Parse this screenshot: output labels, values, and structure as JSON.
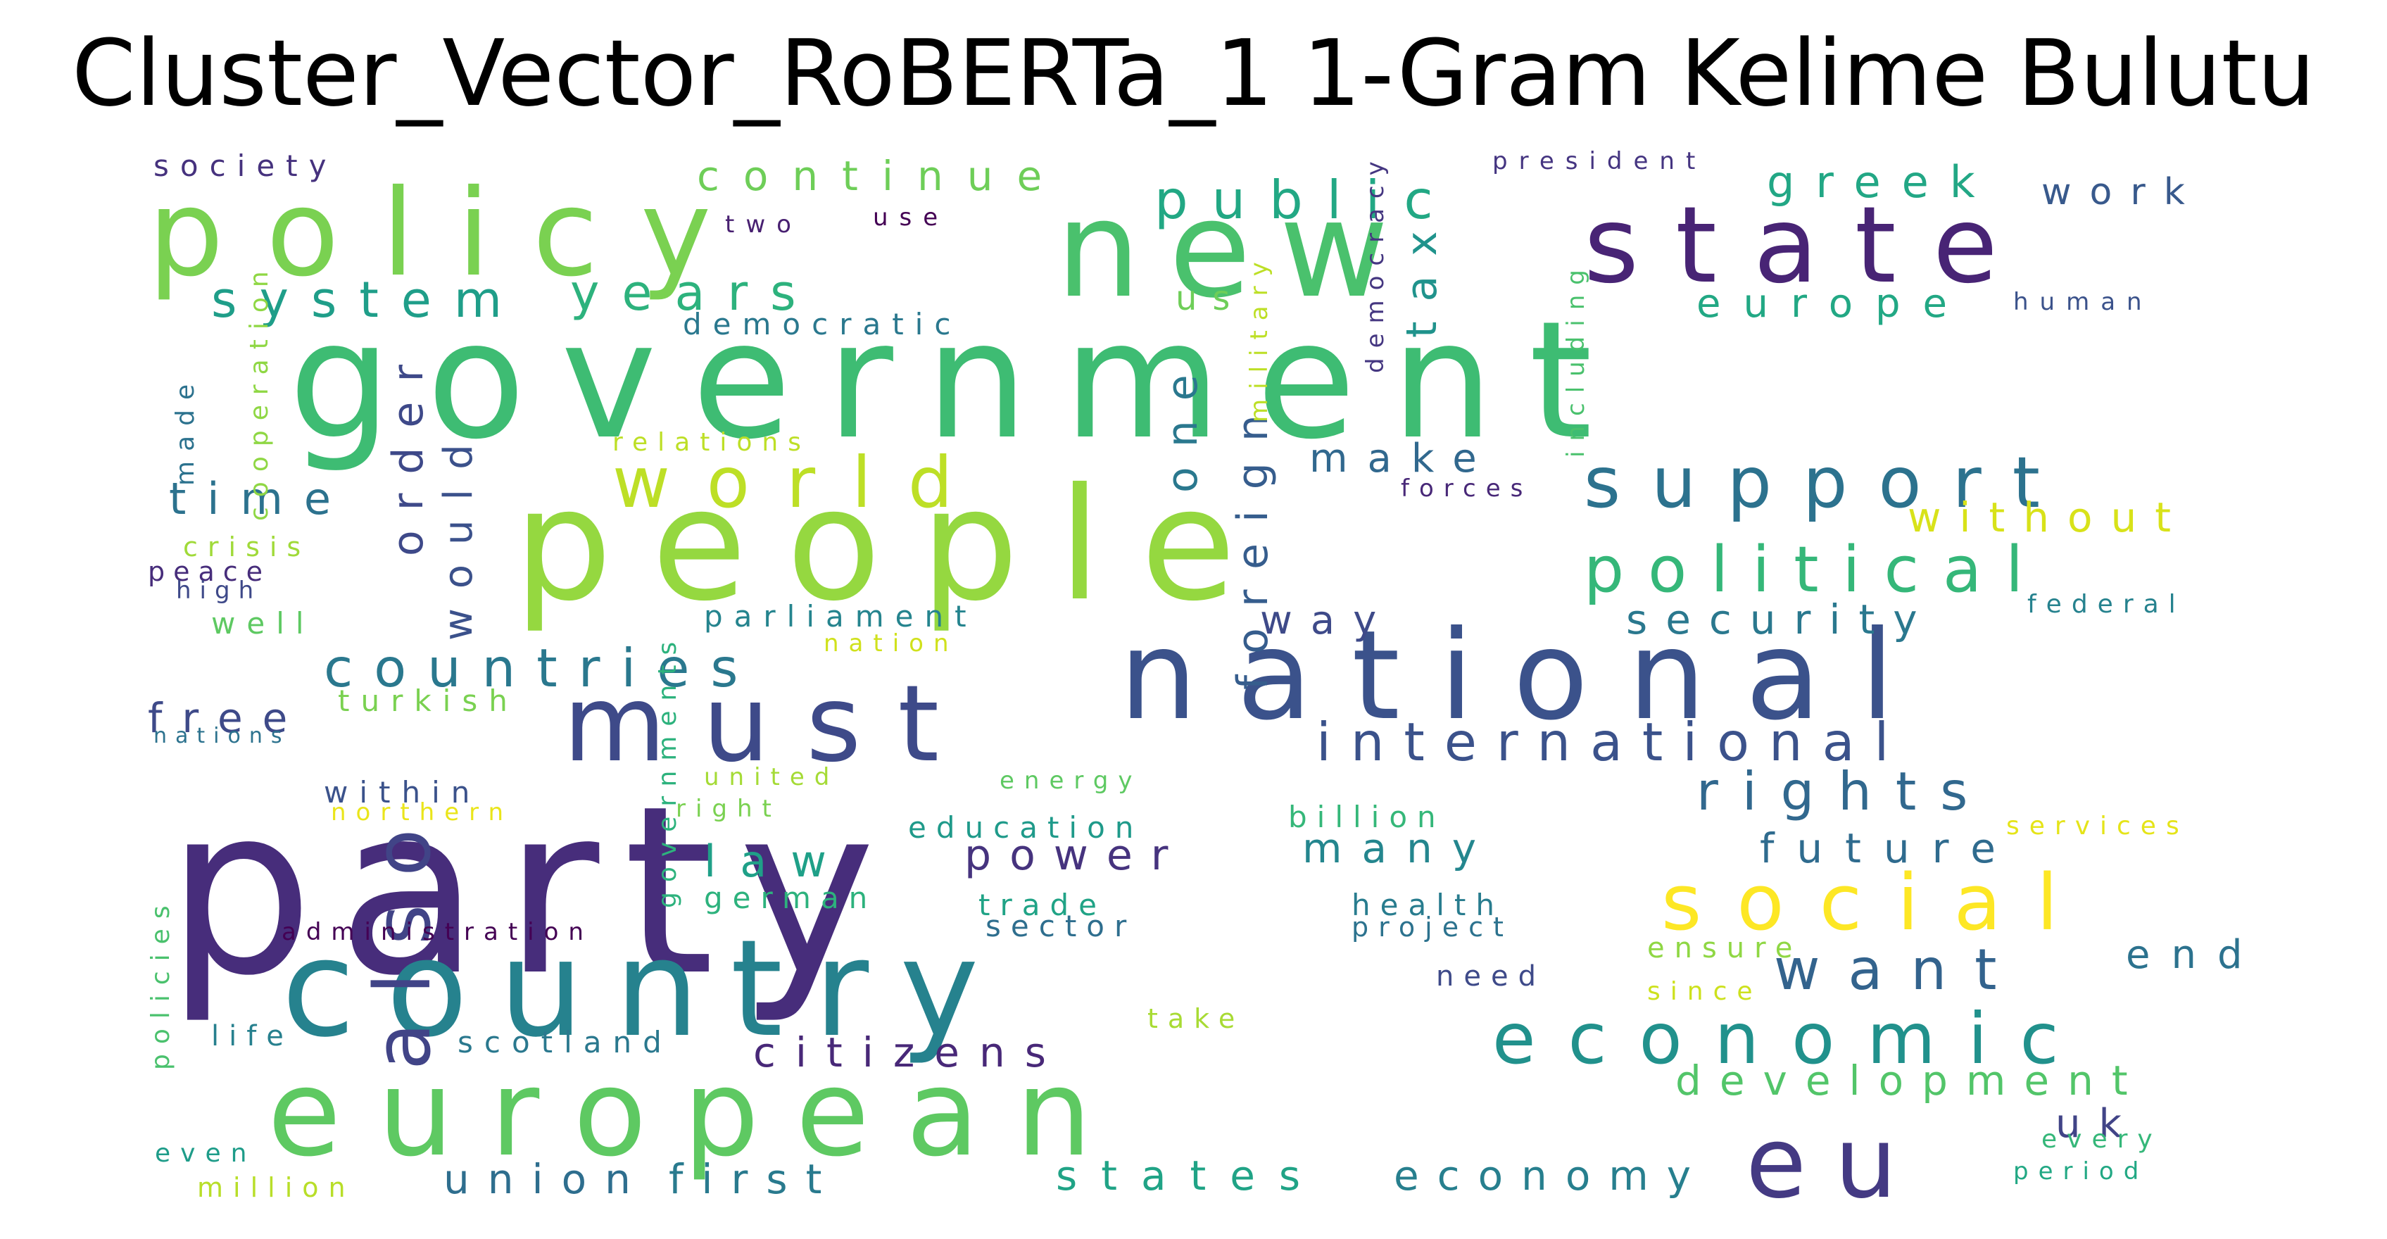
{
  "title": "Cluster_Vector_RoBERTa_1 1-Gram Kelime Bulutu",
  "words": [
    {
      "text": "party",
      "color": "#472d7b"
    },
    {
      "text": "government",
      "color": "#3ebc73"
    },
    {
      "text": "people",
      "color": "#95d840"
    },
    {
      "text": "country",
      "color": "#26828e"
    },
    {
      "text": "european",
      "color": "#5ec962"
    },
    {
      "text": "national",
      "color": "#3b528b"
    },
    {
      "text": "policy",
      "color": "#7ad151"
    },
    {
      "text": "new",
      "color": "#4ac16d"
    },
    {
      "text": "state",
      "color": "#482475"
    },
    {
      "text": "must",
      "color": "#3e4a89"
    },
    {
      "text": "also",
      "color": "#414487"
    },
    {
      "text": "eu",
      "color": "#443a83"
    },
    {
      "text": "social",
      "color": "#fde725"
    },
    {
      "text": "economic",
      "color": "#21918c"
    },
    {
      "text": "world",
      "color": "#bddf26"
    },
    {
      "text": "support",
      "color": "#2c728e"
    },
    {
      "text": "political",
      "color": "#35b779"
    },
    {
      "text": "international",
      "color": "#3b528b"
    },
    {
      "text": "countries",
      "color": "#2a788e"
    },
    {
      "text": "rights",
      "color": "#31688e"
    },
    {
      "text": "system",
      "color": "#1f9e89"
    },
    {
      "text": "years",
      "color": "#2db27d"
    },
    {
      "text": "public",
      "color": "#22a884"
    },
    {
      "text": "continue",
      "color": "#6ece58"
    },
    {
      "text": "security",
      "color": "#2a788e"
    },
    {
      "text": "development",
      "color": "#52c569"
    },
    {
      "text": "future",
      "color": "#2f6b8e"
    },
    {
      "text": "want",
      "color": "#33638d"
    },
    {
      "text": "union",
      "color": "#2e6e8e"
    },
    {
      "text": "first",
      "color": "#297a8e"
    },
    {
      "text": "states",
      "color": "#20a386"
    },
    {
      "text": "economy",
      "color": "#277f8e"
    },
    {
      "text": "citizens",
      "color": "#482878"
    },
    {
      "text": "power",
      "color": "#46337e"
    },
    {
      "text": "law",
      "color": "#1fa088"
    },
    {
      "text": "many",
      "color": "#24868e"
    },
    {
      "text": "foreign",
      "color": "#365d8d"
    },
    {
      "text": "one",
      "color": "#2a788e"
    },
    {
      "text": "order",
      "color": "#3e4989"
    },
    {
      "text": "would",
      "color": "#3b518b"
    },
    {
      "text": "time",
      "color": "#2c728e"
    },
    {
      "text": "free",
      "color": "#3e4a89"
    },
    {
      "text": "tax",
      "color": "#20938c"
    },
    {
      "text": "make",
      "color": "#31688e"
    },
    {
      "text": "greek",
      "color": "#22a785"
    },
    {
      "text": "work",
      "color": "#38598c"
    },
    {
      "text": "europe",
      "color": "#22a884"
    },
    {
      "text": "without",
      "color": "#d8e219"
    },
    {
      "text": "way",
      "color": "#3e4a89"
    },
    {
      "text": "end",
      "color": "#2c728e"
    },
    {
      "text": "uk",
      "color": "#414487"
    },
    {
      "text": "us",
      "color": "#6ece58"
    },
    {
      "text": "democratic",
      "color": "#2a788e"
    },
    {
      "text": "parliament",
      "color": "#25848e"
    },
    {
      "text": "within",
      "color": "#3b528b"
    },
    {
      "text": "turkish",
      "color": "#7ad151"
    },
    {
      "text": "well",
      "color": "#5ec962"
    },
    {
      "text": "peace",
      "color": "#472d7b"
    },
    {
      "text": "crisis",
      "color": "#a0da39"
    },
    {
      "text": "high",
      "color": "#3e4989"
    },
    {
      "text": "nations",
      "color": "#2c728e"
    },
    {
      "text": "society",
      "color": "#46327e"
    },
    {
      "text": "two",
      "color": "#482071"
    },
    {
      "text": "use",
      "color": "#440154"
    },
    {
      "text": "president",
      "color": "#453581"
    },
    {
      "text": "human",
      "color": "#3b528b"
    },
    {
      "text": "federal",
      "color": "#26828e"
    },
    {
      "text": "relations",
      "color": "#bddf26"
    },
    {
      "text": "cooperation",
      "color": "#8fd744"
    },
    {
      "text": "made",
      "color": "#2c728e"
    },
    {
      "text": "policies",
      "color": "#4ac16d"
    },
    {
      "text": "governments",
      "color": "#2db27d"
    },
    {
      "text": "nation",
      "color": "#d0e11c"
    },
    {
      "text": "united",
      "color": "#a5db36"
    },
    {
      "text": "right",
      "color": "#7ad151"
    },
    {
      "text": "northern",
      "color": "#eae51a"
    },
    {
      "text": "energy",
      "color": "#5ec962"
    },
    {
      "text": "education",
      "color": "#1f9a8a"
    },
    {
      "text": "billion",
      "color": "#35b779"
    },
    {
      "text": "german",
      "color": "#2db27d"
    },
    {
      "text": "trade",
      "color": "#20a386"
    },
    {
      "text": "sector",
      "color": "#2e6e8e"
    },
    {
      "text": "administration",
      "color": "#440154"
    },
    {
      "text": "health",
      "color": "#287c8e"
    },
    {
      "text": "project",
      "color": "#2c728e"
    },
    {
      "text": "need",
      "color": "#3e4a89"
    },
    {
      "text": "ensure",
      "color": "#8fd744"
    },
    {
      "text": "since",
      "color": "#cde11d"
    },
    {
      "text": "services",
      "color": "#e5e419"
    },
    {
      "text": "take",
      "color": "#a8db34"
    },
    {
      "text": "scotland",
      "color": "#2a788e"
    },
    {
      "text": "life",
      "color": "#27808e"
    },
    {
      "text": "even",
      "color": "#1e9c89"
    },
    {
      "text": "million",
      "color": "#b8de29"
    },
    {
      "text": "every",
      "color": "#35b779"
    },
    {
      "text": "period",
      "color": "#22a884"
    },
    {
      "text": "military",
      "color": "#bddf26"
    },
    {
      "text": "democracy",
      "color": "#453781"
    },
    {
      "text": "including",
      "color": "#4ac16d"
    },
    {
      "text": "forces",
      "color": "#482878"
    }
  ]
}
